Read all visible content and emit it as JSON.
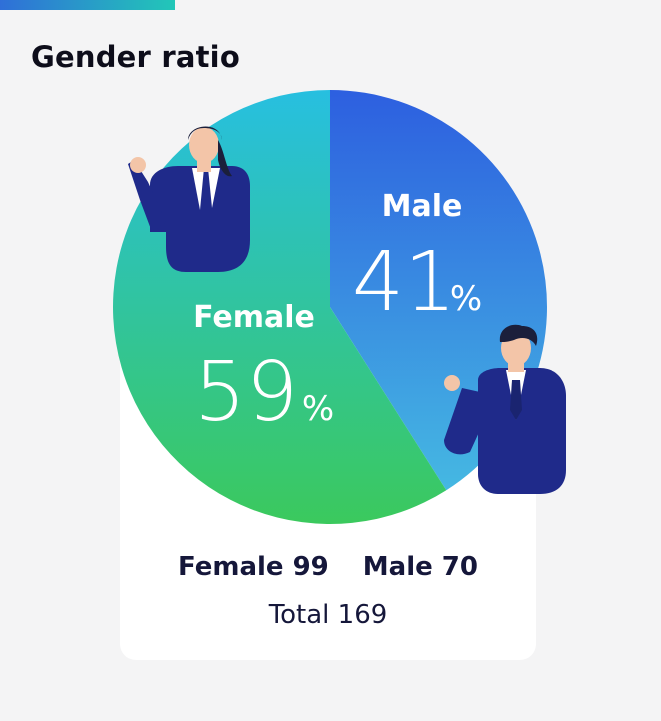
{
  "page": {
    "title": "Gender ratio"
  },
  "colors": {
    "accent_start": "#2f6fd8",
    "accent_end": "#22c7b8",
    "female_top": "#27bfe0",
    "female_bottom": "#3bc95d",
    "male_top": "#2d5fe0",
    "male_bottom": "#45b8e2",
    "suit": "#1f2a8a"
  },
  "chart_data": {
    "type": "pie",
    "title": "Gender ratio",
    "slices": [
      {
        "label": "Male",
        "percent": 41,
        "count": 70
      },
      {
        "label": "Female",
        "percent": 59,
        "count": 99
      }
    ],
    "total": 169,
    "percent_symbol": "%"
  },
  "labels": {
    "male": "Male",
    "male_pct": "41",
    "female": "Female",
    "female_pct": "59",
    "pct": "%"
  },
  "stats": {
    "female": "Female 99",
    "male": "Male 70",
    "total": "Total 169"
  }
}
